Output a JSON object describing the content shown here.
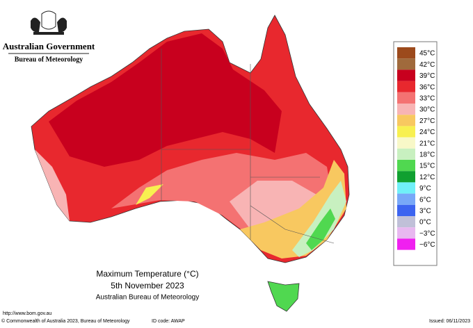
{
  "header": {
    "government": "Australian Government",
    "bureau": "Bureau of Meteorology"
  },
  "legend": {
    "items": [
      {
        "label": "45°C",
        "color": "#9c4a1c"
      },
      {
        "label": "42°C",
        "color": "#a06a3c"
      },
      {
        "label": "39°C",
        "color": "#c8001e"
      },
      {
        "label": "36°C",
        "color": "#e8282e"
      },
      {
        "label": "33°C",
        "color": "#f47272"
      },
      {
        "label": "30°C",
        "color": "#f8b4b4"
      },
      {
        "label": "27°C",
        "color": "#f8c860"
      },
      {
        "label": "24°C",
        "color": "#f8f050"
      },
      {
        "label": "21°C",
        "color": "#f8f8c8"
      },
      {
        "label": "18°C",
        "color": "#c8f0c0"
      },
      {
        "label": "15°C",
        "color": "#50d850"
      },
      {
        "label": "12°C",
        "color": "#10a030"
      },
      {
        "label": "9°C",
        "color": "#70f0f8"
      },
      {
        "label": "6°C",
        "color": "#78a8f8"
      },
      {
        "label": "3°C",
        "color": "#3c64f0"
      },
      {
        "label": "0°C",
        "color": "#c0c0d8"
      },
      {
        "label": "−3°C",
        "color": "#e8b8f0"
      },
      {
        "label": "−6°C",
        "color": "#f020f0"
      }
    ]
  },
  "caption": {
    "title": "Maximum Temperature (°C)",
    "date": "5th November 2023",
    "source": "Australian Bureau of Meteorology"
  },
  "footer": {
    "url": "http://www.bom.gov.au",
    "copyright": "© Commonwealth of Australia 2023, Bureau of Meteorology",
    "id_code": "ID code: AWAP",
    "issued": "Issued: 06/11/2023"
  }
}
